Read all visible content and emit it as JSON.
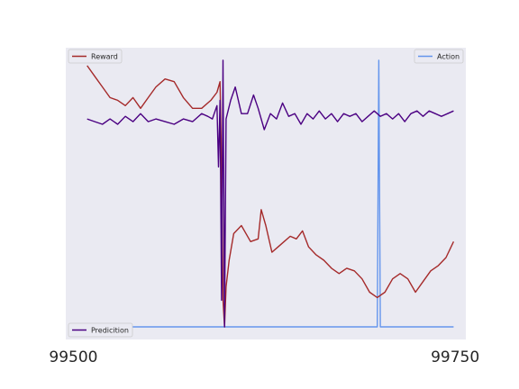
{
  "chart_data": {
    "type": "line",
    "xlim": [
      99495,
      99757
    ],
    "x_ticks": [
      "99500",
      "99750"
    ],
    "grid": false,
    "colors": {
      "background": "#eaeaf2",
      "reward": "#a52a2a",
      "action": "#6495ed",
      "prediction": "#4b0082"
    },
    "legends": [
      {
        "label": "Reward",
        "placement": "upper-left",
        "series": "reward"
      },
      {
        "label": "Action",
        "placement": "upper-right",
        "series": "action"
      },
      {
        "label": "Predicition",
        "placement": "lower-left",
        "series": "prediction"
      }
    ],
    "series": [
      {
        "name": "Reward",
        "key": "reward",
        "scale": "relative 0 (bottom) to 1 (top)",
        "points": [
          [
            99509,
            0.98
          ],
          [
            99514,
            0.94
          ],
          [
            99519,
            0.9
          ],
          [
            99524,
            0.86
          ],
          [
            99529,
            0.85
          ],
          [
            99534,
            0.83
          ],
          [
            99539,
            0.86
          ],
          [
            99544,
            0.82
          ],
          [
            99549,
            0.86
          ],
          [
            99554,
            0.9
          ],
          [
            99560,
            0.93
          ],
          [
            99566,
            0.92
          ],
          [
            99572,
            0.86
          ],
          [
            99578,
            0.82
          ],
          [
            99584,
            0.82
          ],
          [
            99590,
            0.85
          ],
          [
            99594,
            0.88
          ],
          [
            99596,
            0.92
          ],
          [
            99597,
            0.6
          ],
          [
            99598,
            0.1
          ],
          [
            99599,
            0.0
          ],
          [
            99600,
            0.15
          ],
          [
            99602,
            0.25
          ],
          [
            99605,
            0.35
          ],
          [
            99610,
            0.38
          ],
          [
            99616,
            0.32
          ],
          [
            99621,
            0.33
          ],
          [
            99623,
            0.44
          ],
          [
            99626,
            0.38
          ],
          [
            99630,
            0.28
          ],
          [
            99634,
            0.3
          ],
          [
            99638,
            0.32
          ],
          [
            99642,
            0.34
          ],
          [
            99646,
            0.33
          ],
          [
            99650,
            0.36
          ],
          [
            99654,
            0.3
          ],
          [
            99659,
            0.27
          ],
          [
            99664,
            0.25
          ],
          [
            99669,
            0.22
          ],
          [
            99674,
            0.2
          ],
          [
            99679,
            0.22
          ],
          [
            99684,
            0.21
          ],
          [
            99689,
            0.18
          ],
          [
            99694,
            0.13
          ],
          [
            99699,
            0.11
          ],
          [
            99704,
            0.13
          ],
          [
            99709,
            0.18
          ],
          [
            99714,
            0.2
          ],
          [
            99719,
            0.18
          ],
          [
            99724,
            0.13
          ],
          [
            99729,
            0.17
          ],
          [
            99734,
            0.21
          ],
          [
            99739,
            0.23
          ],
          [
            99744,
            0.26
          ],
          [
            99749,
            0.32
          ]
        ]
      },
      {
        "name": "Action",
        "key": "action",
        "scale": "relative 0 (bottom) to 1 (top)",
        "points": [
          [
            99497,
            0.0
          ],
          [
            99699,
            0.0
          ],
          [
            99700,
            1.0
          ],
          [
            99701,
            0.0
          ],
          [
            99749,
            0.0
          ]
        ]
      },
      {
        "name": "Predicition",
        "key": "prediction",
        "scale": "relative 0 (bottom) to 1 (top)",
        "points": [
          [
            99509,
            0.78
          ],
          [
            99514,
            0.77
          ],
          [
            99519,
            0.76
          ],
          [
            99524,
            0.78
          ],
          [
            99529,
            0.76
          ],
          [
            99534,
            0.79
          ],
          [
            99539,
            0.77
          ],
          [
            99544,
            0.8
          ],
          [
            99549,
            0.77
          ],
          [
            99554,
            0.78
          ],
          [
            99560,
            0.77
          ],
          [
            99566,
            0.76
          ],
          [
            99572,
            0.78
          ],
          [
            99578,
            0.77
          ],
          [
            99584,
            0.8
          ],
          [
            99588,
            0.79
          ],
          [
            99591,
            0.78
          ],
          [
            99594,
            0.83
          ],
          [
            99595,
            0.6
          ],
          [
            99596,
            0.85
          ],
          [
            99597,
            0.1
          ],
          [
            99598,
            1.0
          ],
          [
            99599,
            0.0
          ],
          [
            99600,
            0.78
          ],
          [
            99603,
            0.85
          ],
          [
            99606,
            0.9
          ],
          [
            99610,
            0.8
          ],
          [
            99614,
            0.8
          ],
          [
            99618,
            0.87
          ],
          [
            99621,
            0.82
          ],
          [
            99625,
            0.74
          ],
          [
            99629,
            0.8
          ],
          [
            99633,
            0.78
          ],
          [
            99637,
            0.84
          ],
          [
            99641,
            0.79
          ],
          [
            99645,
            0.8
          ],
          [
            99649,
            0.76
          ],
          [
            99653,
            0.8
          ],
          [
            99657,
            0.78
          ],
          [
            99661,
            0.81
          ],
          [
            99665,
            0.78
          ],
          [
            99669,
            0.8
          ],
          [
            99673,
            0.77
          ],
          [
            99677,
            0.8
          ],
          [
            99681,
            0.79
          ],
          [
            99685,
            0.8
          ],
          [
            99689,
            0.77
          ],
          [
            99693,
            0.79
          ],
          [
            99697,
            0.81
          ],
          [
            99701,
            0.79
          ],
          [
            99705,
            0.8
          ],
          [
            99709,
            0.78
          ],
          [
            99713,
            0.8
          ],
          [
            99717,
            0.77
          ],
          [
            99721,
            0.8
          ],
          [
            99725,
            0.81
          ],
          [
            99729,
            0.79
          ],
          [
            99733,
            0.81
          ],
          [
            99737,
            0.8
          ],
          [
            99741,
            0.79
          ],
          [
            99745,
            0.8
          ],
          [
            99749,
            0.81
          ]
        ]
      }
    ]
  }
}
